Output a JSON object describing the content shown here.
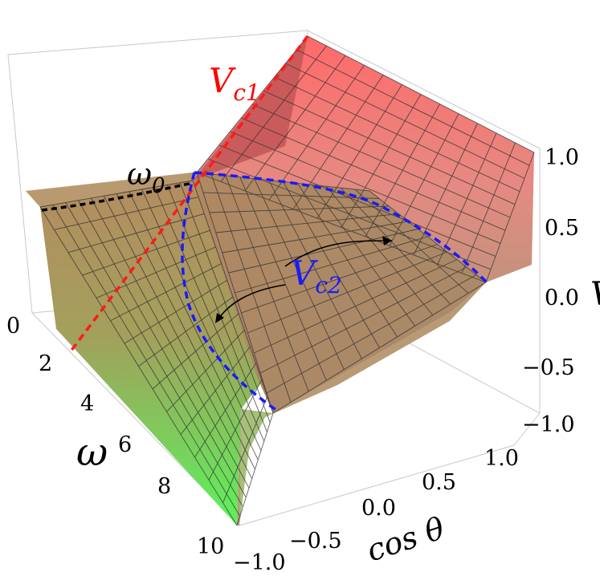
{
  "chart_data": {
    "type": "surface",
    "xlabel": "cos θ",
    "ylabel": "ω",
    "zlabel": "V",
    "x_ticks": [
      "−1.0",
      "−0.5",
      "0.0",
      "0.5",
      "1.0"
    ],
    "y_ticks": [
      "0",
      "2",
      "4",
      "6",
      "8",
      "10"
    ],
    "z_ticks": [
      "1.0",
      "0.5",
      "0.0",
      "−0.5",
      "−1.0"
    ],
    "xlim": [
      -1.0,
      1.0
    ],
    "ylim": [
      0,
      10
    ],
    "zlim": [
      -1.0,
      1.0
    ],
    "color_low": "#66ff66",
    "color_mid": "#b08a5e",
    "color_high": "#ff6a6a",
    "annotations": [
      {
        "text": "V",
        "sub": "c1",
        "color": "#ff0000"
      },
      {
        "text": "V",
        "sub": "c2",
        "color": "#1a1aff"
      },
      {
        "text": "ω",
        "sub": "0",
        "color": "#000000"
      }
    ],
    "curves": [
      {
        "name": "V_c1",
        "color": "#ff0000",
        "style": "dashed"
      },
      {
        "name": "V_c2",
        "color": "#0000ff",
        "style": "dashed"
      },
      {
        "name": "ω_0",
        "color": "#000000",
        "style": "dashed"
      }
    ]
  }
}
